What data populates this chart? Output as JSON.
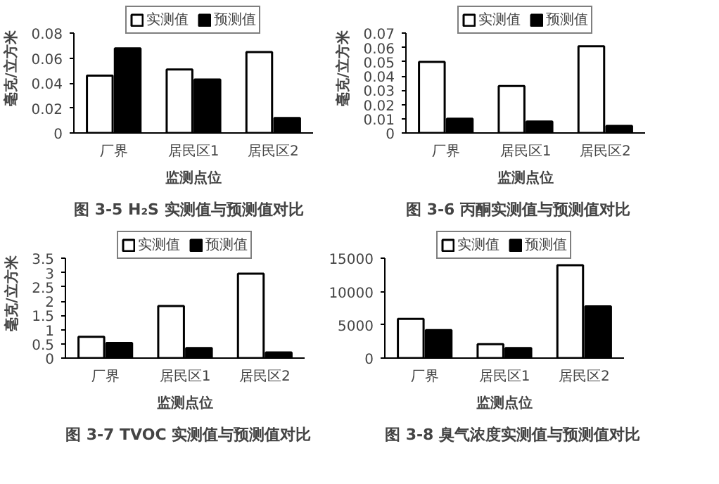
{
  "chart_data": [
    {
      "type": "bar",
      "title": "图 3-5 H₂S 实测值与预测值对比",
      "xlabel": "监测点位",
      "ylabel": "毫克/立方米",
      "categories": [
        "厂界",
        "居民区1",
        "居民区2"
      ],
      "series": [
        {
          "name": "实测值",
          "color": "#ffffff",
          "values": [
            0.046,
            0.051,
            0.065
          ]
        },
        {
          "name": "预测值",
          "color": "#000000",
          "values": [
            0.068,
            0.043,
            0.012
          ]
        }
      ],
      "ylim": [
        0,
        0.08
      ],
      "yticks": [
        0,
        0.02,
        0.04,
        0.06,
        0.08
      ],
      "grid": false,
      "legend": "top"
    },
    {
      "type": "bar",
      "title": "图 3-6 丙酮实测值与预测值对比",
      "xlabel": "监测点位",
      "ylabel": "毫克/立方米",
      "categories": [
        "厂界",
        "居民区1",
        "居民区2"
      ],
      "series": [
        {
          "name": "实测值",
          "color": "#ffffff",
          "values": [
            0.05,
            0.033,
            0.061
          ]
        },
        {
          "name": "预测值",
          "color": "#000000",
          "values": [
            0.01,
            0.008,
            0.005
          ]
        }
      ],
      "ylim": [
        0,
        0.07
      ],
      "yticks": [
        0,
        0.01,
        0.02,
        0.03,
        0.04,
        0.05,
        0.06,
        0.07
      ],
      "grid": false,
      "legend": "top"
    },
    {
      "type": "bar",
      "title": "图 3-7 TVOC 实测值与预测值对比",
      "xlabel": "监测点位",
      "ylabel": "毫克/立方米",
      "categories": [
        "厂界",
        "居民区1",
        "居民区2"
      ],
      "series": [
        {
          "name": "实测值",
          "color": "#ffffff",
          "values": [
            0.75,
            1.83,
            2.97
          ]
        },
        {
          "name": "预测值",
          "color": "#000000",
          "values": [
            0.53,
            0.35,
            0.2
          ]
        }
      ],
      "ylim": [
        0,
        3.5
      ],
      "yticks": [
        0,
        0.5,
        1,
        1.5,
        2,
        2.5,
        3,
        3.5
      ],
      "grid": false,
      "legend": "top"
    },
    {
      "type": "bar",
      "title": "图 3-8 臭气浓度实测值与预测值对比",
      "xlabel": "监测点位",
      "categories": [
        "厂界",
        "居民区1",
        "居民区2"
      ],
      "series": [
        {
          "name": "实测值",
          "color": "#ffffff",
          "values": [
            5900,
            2100,
            14000
          ]
        },
        {
          "name": "预测值",
          "color": "#000000",
          "values": [
            4200,
            1500,
            7800
          ]
        }
      ],
      "ylim": [
        0,
        15000
      ],
      "yticks": [
        0,
        5000,
        10000,
        15000
      ],
      "grid": false,
      "legend": "top"
    }
  ]
}
